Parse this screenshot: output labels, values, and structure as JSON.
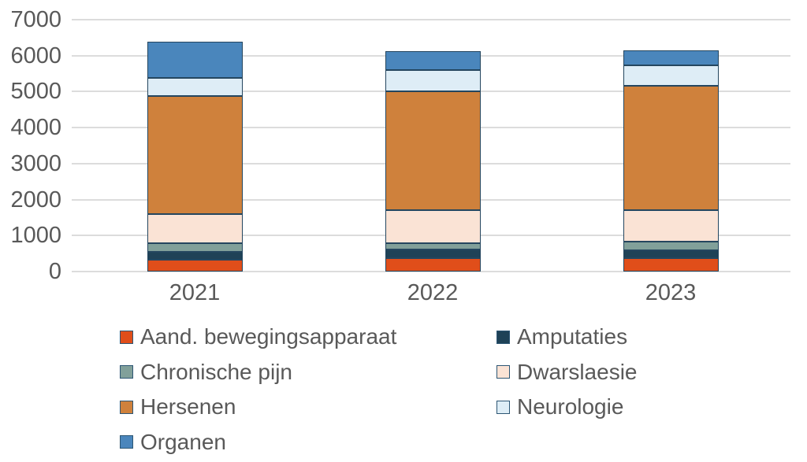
{
  "chart_data": {
    "type": "bar",
    "stacked": true,
    "title": "",
    "xlabel": "",
    "ylabel": "",
    "categories": [
      "2021",
      "2022",
      "2023"
    ],
    "series": [
      {
        "name": "Aand. bewegingsapparaat",
        "color": "#e04e1a",
        "values": [
          330,
          380,
          370
        ]
      },
      {
        "name": "Amputaties",
        "color": "#1f4257",
        "values": [
          210,
          240,
          230
        ]
      },
      {
        "name": "Chronische pijn",
        "color": "#81a09a",
        "values": [
          250,
          170,
          230
        ]
      },
      {
        "name": "Dwarslaesie",
        "color": "#fae3d5",
        "values": [
          810,
          910,
          870
        ]
      },
      {
        "name": "Hersenen",
        "color": "#cf813c",
        "values": [
          3270,
          3310,
          3460
        ]
      },
      {
        "name": "Neurologie",
        "color": "#deedf6",
        "values": [
          510,
          590,
          580
        ]
      },
      {
        "name": "Organen",
        "color": "#4a86bc",
        "values": [
          1010,
          530,
          400
        ]
      }
    ],
    "totals": [
      6390,
      6130,
      6140
    ],
    "ylim": [
      0,
      7000
    ],
    "yticks": [
      0,
      1000,
      2000,
      3000,
      4000,
      5000,
      6000,
      7000
    ],
    "grid": true,
    "legend_position": "bottom",
    "legend_columns": 2,
    "bar_border_color": "#24465f",
    "grid_color": "#dcdcdc",
    "text_color": "#595959"
  }
}
